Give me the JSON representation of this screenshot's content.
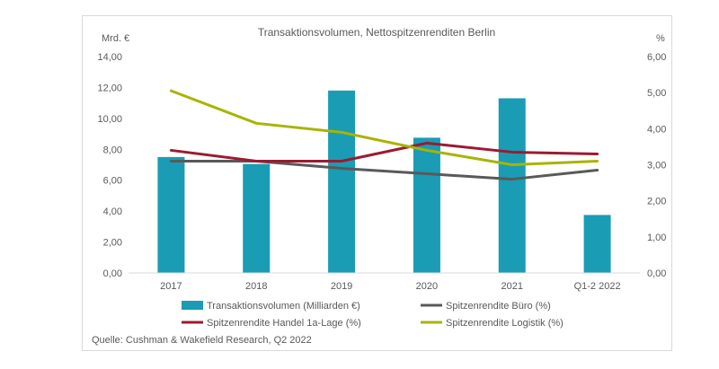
{
  "chart_data": {
    "type": "bar+line",
    "title": "Transaktionsvolumen, Nettospitzenrenditen Berlin",
    "categories": [
      "2017",
      "2018",
      "2019",
      "2020",
      "2021",
      "Q1-2 2022"
    ],
    "left_axis": {
      "unit_label": "Mrd. €",
      "ylim": [
        0,
        14
      ],
      "ticks": [
        "0,00",
        "2,00",
        "4,00",
        "6,00",
        "8,00",
        "10,00",
        "12,00",
        "14,00"
      ],
      "tick_values": [
        0,
        2,
        4,
        6,
        8,
        10,
        12,
        14
      ]
    },
    "right_axis": {
      "unit_label": "%",
      "ylim": [
        0,
        6
      ],
      "ticks": [
        "0,00",
        "1,00",
        "2,00",
        "3,00",
        "4,00",
        "5,00",
        "6,00"
      ],
      "tick_values": [
        0,
        1,
        2,
        3,
        4,
        5,
        6
      ]
    },
    "bar_series": {
      "name": "Transaktionsvolumen (Milliarden €)",
      "color": "#1a9cb4",
      "axis": "left",
      "values": [
        7.5,
        7.05,
        11.8,
        8.75,
        11.3,
        3.75
      ]
    },
    "line_series": [
      {
        "name": "Spitzenrendite Büro (%)",
        "color": "#595959",
        "axis": "right",
        "values": [
          3.1,
          3.1,
          2.9,
          2.75,
          2.6,
          2.85
        ]
      },
      {
        "name": "Spitzenrendite Handel 1a-Lage (%)",
        "color": "#9b1b30",
        "axis": "right",
        "values": [
          3.4,
          3.1,
          3.1,
          3.6,
          3.35,
          3.3
        ]
      },
      {
        "name": "Spitzenrendite Logistik (%)",
        "color": "#a8b400",
        "axis": "right",
        "values": [
          5.05,
          4.15,
          3.9,
          3.4,
          3.0,
          3.1
        ]
      }
    ],
    "legend": [
      {
        "label": "Transaktionsvolumen (Milliarden €)",
        "kind": "bar",
        "color": "#1a9cb4"
      },
      {
        "label": "Spitzenrendite Büro (%)",
        "kind": "line",
        "color": "#595959"
      },
      {
        "label": "Spitzenrendite Handel 1a-Lage (%)",
        "kind": "line",
        "color": "#9b1b30"
      },
      {
        "label": "Spitzenrendite Logistik (%)",
        "kind": "line",
        "color": "#a8b400"
      }
    ],
    "legend_position": "bottom",
    "grid": false,
    "source": "Quelle: Cushman & Wakefield Research, Q2 2022"
  }
}
